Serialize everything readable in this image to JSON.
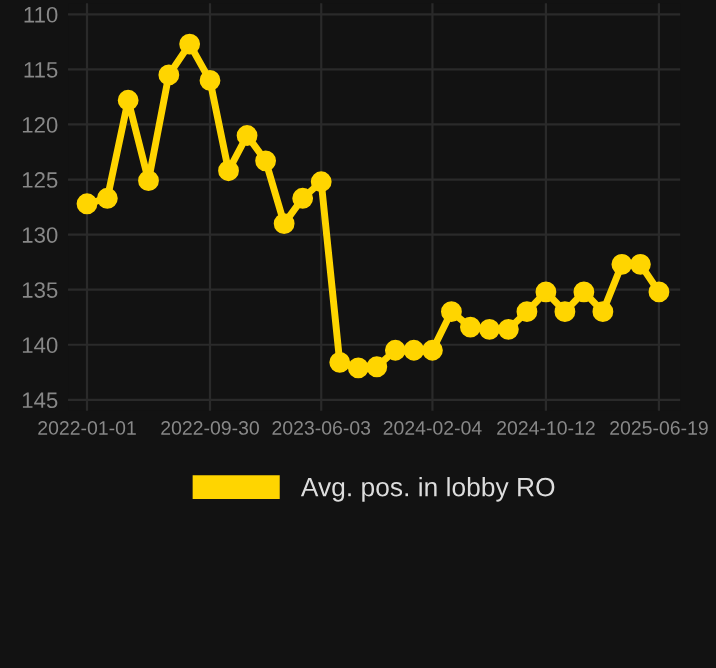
{
  "chart_data": {
    "type": "line",
    "x": [
      "2022-01-01",
      "2022-02-15",
      "2022-04-02",
      "2022-05-17",
      "2022-07-01",
      "2022-08-16",
      "2022-09-30",
      "2022-11-10",
      "2022-12-21",
      "2023-01-31",
      "2023-03-13",
      "2023-04-23",
      "2023-06-03",
      "2023-07-14",
      "2023-08-24",
      "2023-10-04",
      "2023-11-14",
      "2023-12-25",
      "2024-02-04",
      "2024-03-17",
      "2024-04-28",
      "2024-06-09",
      "2024-07-21",
      "2024-08-31",
      "2024-10-12",
      "2024-11-23",
      "2025-01-04",
      "2025-02-15",
      "2025-03-29",
      "2025-05-09",
      "2025-06-19"
    ],
    "series": [
      {
        "name": "Avg. pos. in lobby RO",
        "color": "#ffd500",
        "values": [
          127.2,
          126.7,
          117.8,
          125.1,
          115.5,
          112.7,
          116.0,
          124.2,
          121.0,
          123.3,
          129.0,
          126.7,
          125.2,
          141.6,
          142.1,
          142.0,
          140.5,
          140.5,
          140.5,
          137.0,
          138.4,
          138.6,
          138.6,
          137.0,
          135.2,
          137.0,
          135.2,
          137.0,
          132.7,
          132.7,
          135.2
        ]
      }
    ],
    "ylim": [
      146,
      109
    ],
    "yticks": [
      110,
      115,
      120,
      125,
      130,
      135,
      140,
      145
    ],
    "xlim": [
      "2021-11-20",
      "2025-08-05"
    ],
    "xticks": [
      "2022-01-01",
      "2022-09-30",
      "2023-06-03",
      "2024-02-04",
      "2024-10-12",
      "2025-06-19"
    ],
    "grid": true,
    "legend": "bottom",
    "marker": "circle",
    "line_style": "solid"
  }
}
